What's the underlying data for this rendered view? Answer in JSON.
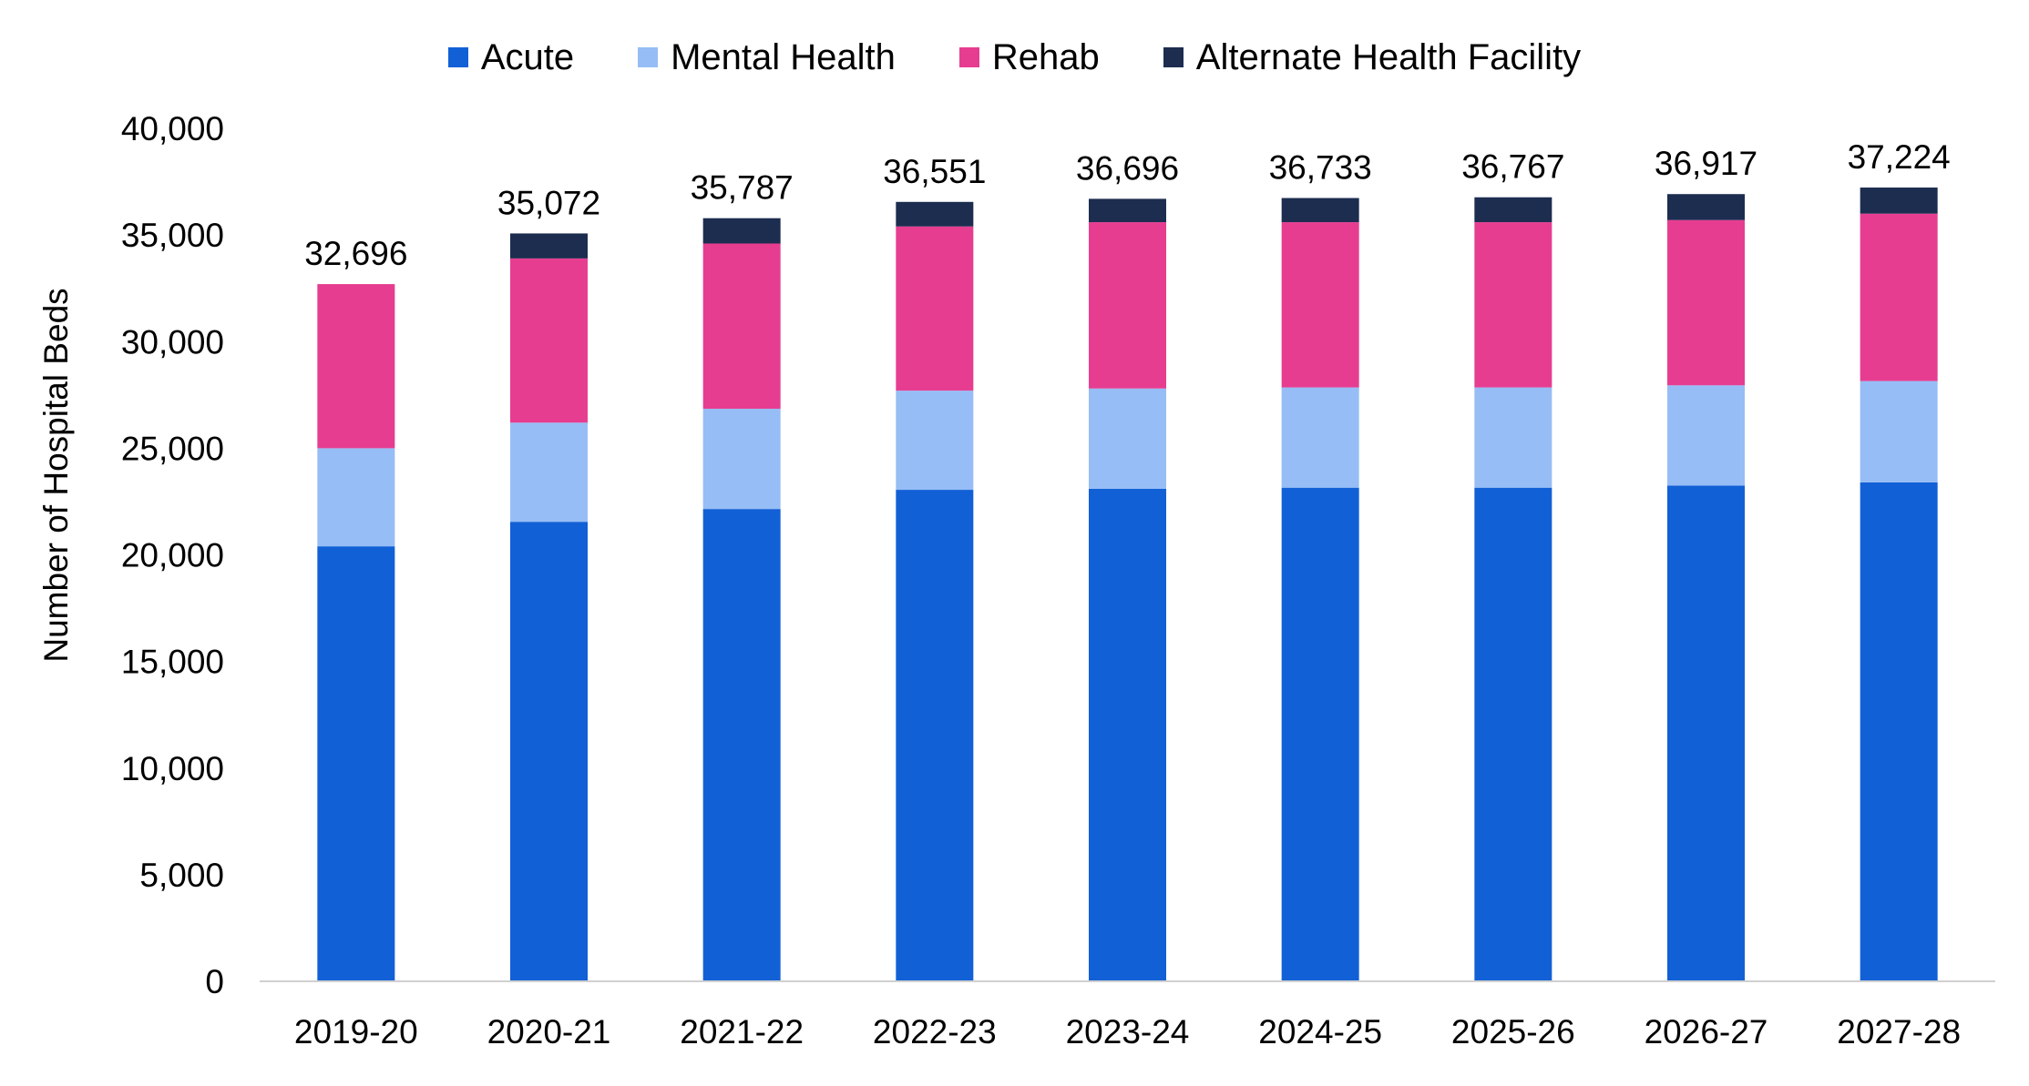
{
  "chart_data": {
    "type": "bar",
    "stacked": true,
    "title": "",
    "xlabel": "",
    "ylabel": "Number of Hospital Beds",
    "ylim": [
      0,
      40000
    ],
    "yticks": [
      0,
      5000,
      10000,
      15000,
      20000,
      25000,
      30000,
      35000,
      40000
    ],
    "ytick_labels": [
      "0",
      "5,000",
      "10,000",
      "15,000",
      "20,000",
      "25,000",
      "30,000",
      "35,000",
      "40,000"
    ],
    "grid": false,
    "legend_position": "top",
    "categories": [
      "2019-20",
      "2020-21",
      "2021-22",
      "2022-23",
      "2023-24",
      "2024-25",
      "2025-26",
      "2026-27",
      "2027-28"
    ],
    "series": [
      {
        "name": "Acute",
        "color": "#1260D6",
        "values": [
          20400,
          21550,
          22150,
          23050,
          23100,
          23150,
          23150,
          23250,
          23400
        ]
      },
      {
        "name": "Mental Health",
        "color": "#96BDF5",
        "values": [
          4600,
          4650,
          4700,
          4650,
          4700,
          4700,
          4700,
          4700,
          4750
        ]
      },
      {
        "name": "Rehab",
        "color": "#E63D91",
        "values": [
          7696,
          7700,
          7750,
          7700,
          7800,
          7750,
          7750,
          7750,
          7850
        ]
      },
      {
        "name": "Alternate Health Facility",
        "color": "#1D2D50",
        "values": [
          0,
          1172,
          1187,
          1151,
          1096,
          1133,
          1167,
          1217,
          1224
        ]
      }
    ],
    "totals": [
      32696,
      35072,
      35787,
      36551,
      36696,
      36733,
      36767,
      36917,
      37224
    ],
    "total_labels": [
      "32,696",
      "35,072",
      "35,787",
      "36,551",
      "36,696",
      "36,733",
      "36,767",
      "36,917",
      "37,224"
    ]
  }
}
